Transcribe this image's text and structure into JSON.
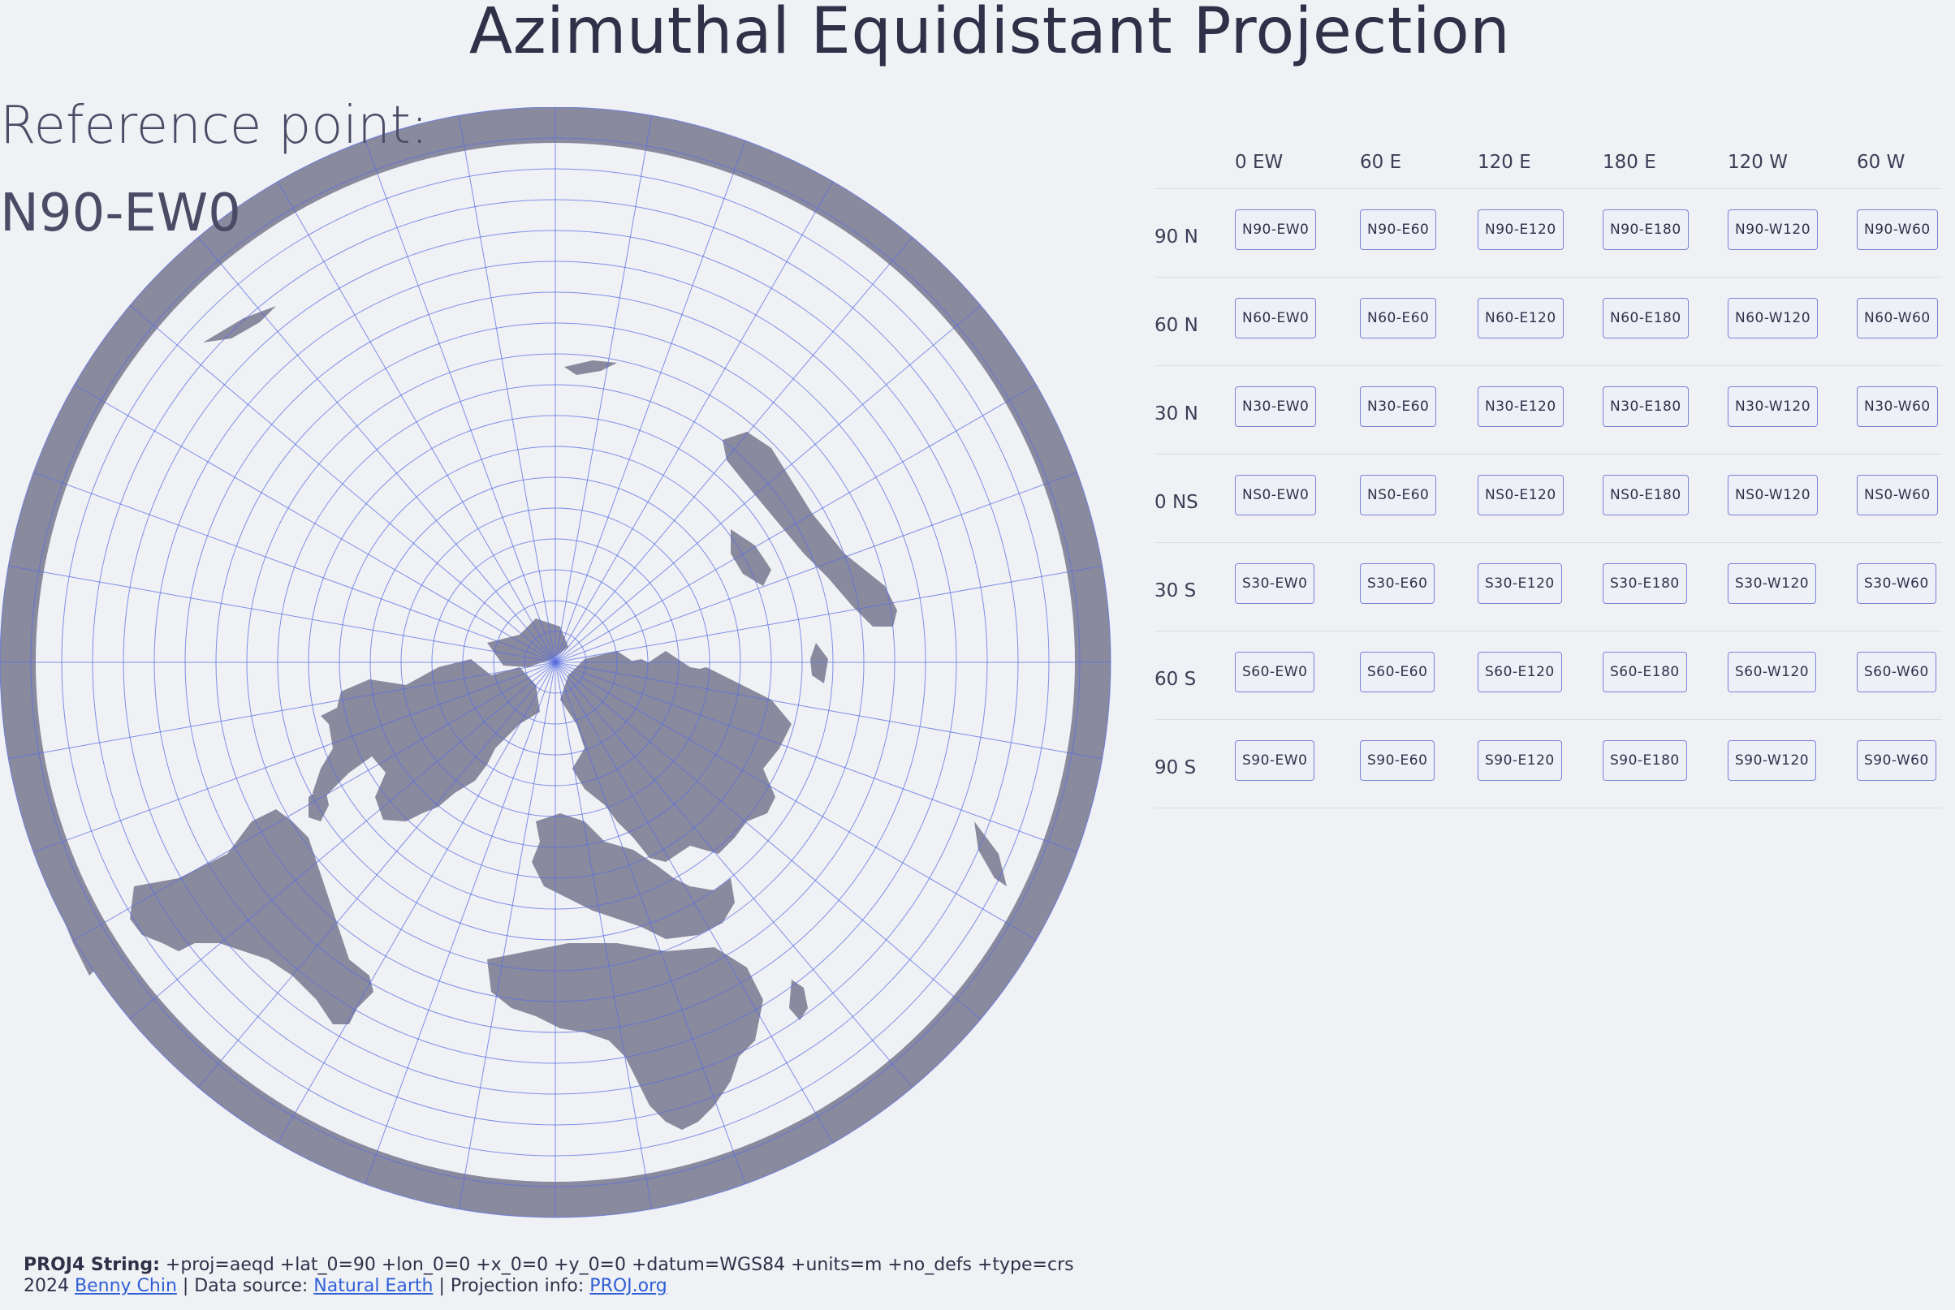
{
  "title": "Azimuthal Equidistant Projection",
  "reference": {
    "label": "Reference point:",
    "value": "N90-EW0"
  },
  "colors": {
    "land": "#8a8a9e",
    "graticule": "#5a6ee0",
    "background": "#f0f1f5",
    "button_border": "#7a82d8",
    "link": "#2f5fd6"
  },
  "table": {
    "columns": [
      "0 EW",
      "60 E",
      "120 E",
      "180 E",
      "120 W",
      "60 W"
    ],
    "rows": [
      {
        "label": "90 N",
        "buttons": [
          "N90-EW0",
          "N90-E60",
          "N90-E120",
          "N90-E180",
          "N90-W120",
          "N90-W60"
        ]
      },
      {
        "label": "60 N",
        "buttons": [
          "N60-EW0",
          "N60-E60",
          "N60-E120",
          "N60-E180",
          "N60-W120",
          "N60-W60"
        ]
      },
      {
        "label": "30 N",
        "buttons": [
          "N30-EW0",
          "N30-E60",
          "N30-E120",
          "N30-E180",
          "N30-W120",
          "N30-W60"
        ]
      },
      {
        "label": "0 NS",
        "buttons": [
          "NS0-EW0",
          "NS0-E60",
          "NS0-E120",
          "NS0-E180",
          "NS0-W120",
          "NS0-W60"
        ]
      },
      {
        "label": "30 S",
        "buttons": [
          "S30-EW0",
          "S30-E60",
          "S30-E120",
          "S30-E180",
          "S30-W120",
          "S30-W60"
        ]
      },
      {
        "label": "60 S",
        "buttons": [
          "S60-EW0",
          "S60-E60",
          "S60-E120",
          "S60-E180",
          "S60-W120",
          "S60-W60"
        ]
      },
      {
        "label": "90 S",
        "buttons": [
          "S90-EW0",
          "S90-E60",
          "S90-E120",
          "S90-E180",
          "S90-W120",
          "S90-W60"
        ]
      }
    ]
  },
  "footer": {
    "proj_label": "PROJ4 String:",
    "proj_string": "+proj=aeqd +lat_0=90 +lon_0=0 +x_0=0 +y_0=0 +datum=WGS84 +units=m +no_defs +type=crs",
    "year": "2024",
    "author": "Benny Chin",
    "sep1": "| Data source:",
    "data_source": "Natural Earth",
    "sep2": "| Projection info:",
    "proj_info": "PROJ.org"
  }
}
